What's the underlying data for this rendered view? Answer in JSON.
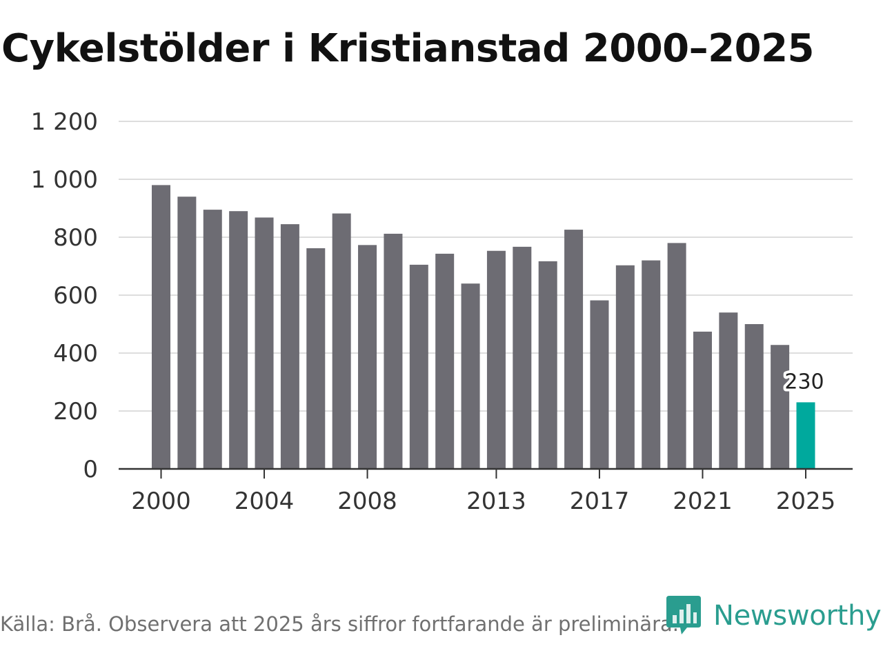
{
  "title": "Cykelstölder i Kristianstad 2000–2025",
  "footer": "Källa: Brå. Observera att 2025 års siffror fortfarande är preliminära.",
  "brand": {
    "name": "Newsworthy",
    "icon": "newsworthy-logo-icon",
    "color": "#2a9d8f"
  },
  "colors": {
    "bar": "#6d6c73",
    "highlight": "#00a99d",
    "grid": "#dddddd",
    "axis": "#333333"
  },
  "chart_data": {
    "type": "bar",
    "title": "Cykelstölder i Kristianstad 2000–2025",
    "xlabel": "",
    "ylabel": "",
    "categories": [
      2000,
      2001,
      2002,
      2003,
      2004,
      2005,
      2006,
      2007,
      2008,
      2009,
      2010,
      2011,
      2012,
      2013,
      2014,
      2015,
      2016,
      2017,
      2018,
      2019,
      2020,
      2021,
      2022,
      2023,
      2024,
      2025
    ],
    "values": [
      980,
      940,
      895,
      890,
      868,
      845,
      762,
      882,
      773,
      812,
      705,
      743,
      640,
      753,
      767,
      717,
      826,
      582,
      703,
      720,
      780,
      474,
      540,
      500,
      428,
      230
    ],
    "highlight_index": 25,
    "x_tick_labels": [
      "2000",
      "2004",
      "2008",
      "2013",
      "2017",
      "2021",
      "2025"
    ],
    "x_tick_values": [
      2000,
      2004,
      2008,
      2013,
      2017,
      2021,
      2025
    ],
    "y_ticks": [
      0,
      200,
      400,
      600,
      800,
      1000,
      1200
    ],
    "y_tick_labels": [
      "0",
      "200",
      "400",
      "600",
      "800",
      "1 000",
      "1 200"
    ],
    "ylim": [
      0,
      1200
    ],
    "grid": true,
    "annotations": [
      {
        "category": 2025,
        "text": "230"
      }
    ]
  }
}
